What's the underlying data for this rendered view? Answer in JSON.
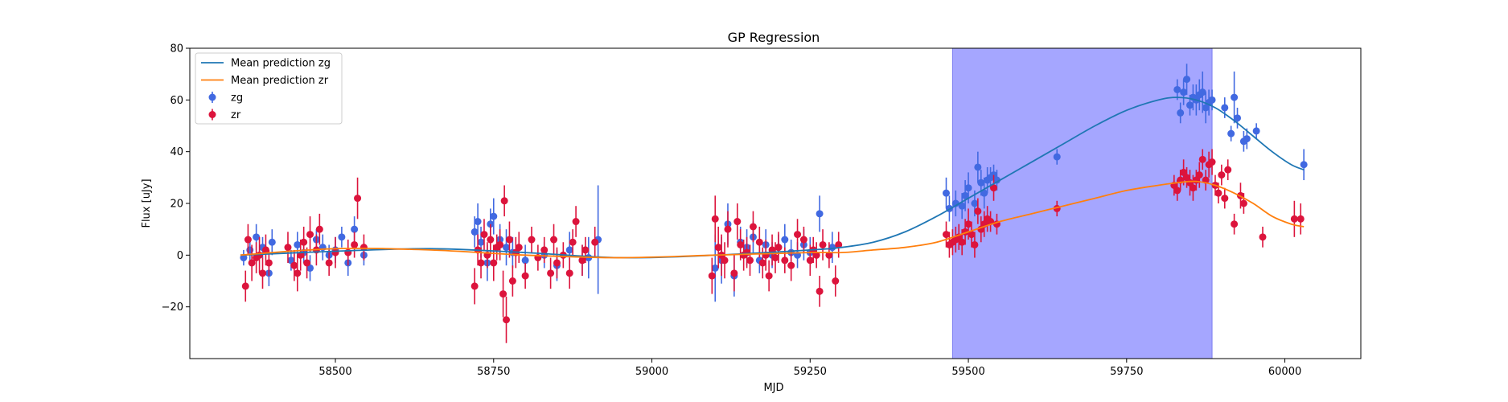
{
  "chart_data": {
    "type": "scatter",
    "title": "GP Regression",
    "xlabel": "MJD",
    "ylabel": "Flux [uJy]",
    "xlim": [
      58270,
      60120
    ],
    "ylim": [
      -40,
      80
    ],
    "xticks": [
      58500,
      58750,
      59000,
      59250,
      59500,
      59750,
      60000
    ],
    "yticks": [
      -20,
      0,
      20,
      40,
      60,
      80
    ],
    "highlight_span": [
      59475,
      59885
    ],
    "highlight_color": "#a5a6ff",
    "legend": {
      "location": "upper left",
      "entries": [
        "Mean prediction zg",
        "Mean prediction zr",
        "zg",
        "zr"
      ]
    },
    "mean_prediction_zg": {
      "name": "Mean prediction zg",
      "color": "#1f77b4",
      "x": [
        58350,
        58500,
        58650,
        58800,
        58950,
        59100,
        59250,
        59300,
        59350,
        59400,
        59450,
        59500,
        59550,
        59600,
        59650,
        59700,
        59750,
        59800,
        59830,
        59860,
        59890,
        59920,
        59950,
        59980,
        60010,
        60030
      ],
      "y": [
        0,
        1.5,
        2.5,
        1,
        -1,
        0,
        2,
        3,
        5,
        9,
        15,
        22,
        29,
        36,
        43,
        50,
        56,
        60,
        61,
        60,
        57,
        52,
        46,
        40,
        35,
        33
      ]
    },
    "mean_prediction_zr": {
      "name": "Mean prediction zr",
      "color": "#ff7f0e",
      "x": [
        58350,
        58500,
        58650,
        58800,
        58950,
        59100,
        59250,
        59300,
        59350,
        59400,
        59450,
        59500,
        59550,
        59600,
        59650,
        59700,
        59750,
        59800,
        59830,
        59860,
        59890,
        59920,
        59950,
        59980,
        60010,
        60030
      ],
      "y": [
        0,
        2.5,
        2,
        0,
        -1,
        0,
        1,
        1,
        2,
        3,
        5,
        9,
        13,
        16,
        19,
        22,
        25,
        27,
        28,
        28.5,
        27,
        24,
        20,
        15,
        12,
        11
      ]
    },
    "series": [
      {
        "name": "zg",
        "color": "#4169e1",
        "points": [
          [
            58355,
            -1,
            3
          ],
          [
            58365,
            2,
            4
          ],
          [
            58375,
            7,
            5
          ],
          [
            58385,
            3,
            4
          ],
          [
            58395,
            -7,
            5
          ],
          [
            58400,
            5,
            5
          ],
          [
            58430,
            -2,
            4
          ],
          [
            58440,
            4,
            5
          ],
          [
            58450,
            1,
            4
          ],
          [
            58460,
            -5,
            5
          ],
          [
            58470,
            6,
            4
          ],
          [
            58480,
            3,
            5
          ],
          [
            58490,
            0,
            4
          ],
          [
            58500,
            2,
            5
          ],
          [
            58510,
            7,
            4
          ],
          [
            58520,
            -3,
            5
          ],
          [
            58530,
            10,
            5
          ],
          [
            58545,
            0,
            4
          ],
          [
            58720,
            9,
            6
          ],
          [
            58725,
            13,
            7
          ],
          [
            58730,
            5,
            6
          ],
          [
            58740,
            -3,
            7
          ],
          [
            58745,
            12,
            6
          ],
          [
            58750,
            15,
            7
          ],
          [
            58760,
            6,
            6
          ],
          [
            58770,
            3,
            7
          ],
          [
            58780,
            1,
            6
          ],
          [
            58800,
            -2,
            6
          ],
          [
            58830,
            0,
            5
          ],
          [
            58850,
            -4,
            6
          ],
          [
            58870,
            2,
            7
          ],
          [
            58890,
            -2,
            6
          ],
          [
            58900,
            -1,
            8
          ],
          [
            58915,
            6,
            21
          ],
          [
            59100,
            -5,
            13
          ],
          [
            59110,
            -2,
            9
          ],
          [
            59120,
            12,
            8
          ],
          [
            59130,
            -8,
            8
          ],
          [
            59140,
            5,
            6
          ],
          [
            59150,
            3,
            7
          ],
          [
            59160,
            7,
            6
          ],
          [
            59170,
            -2,
            5
          ],
          [
            59180,
            4,
            6
          ],
          [
            59190,
            0,
            5
          ],
          [
            59200,
            3,
            5
          ],
          [
            59210,
            6,
            6
          ],
          [
            59220,
            1,
            5
          ],
          [
            59230,
            0,
            5
          ],
          [
            59240,
            4,
            6
          ],
          [
            59250,
            1,
            6
          ],
          [
            59265,
            16,
            7
          ],
          [
            59285,
            3,
            6
          ],
          [
            59465,
            24,
            6
          ],
          [
            59470,
            18,
            5
          ],
          [
            59480,
            20,
            5
          ],
          [
            59490,
            19,
            5
          ],
          [
            59495,
            23,
            6
          ],
          [
            59500,
            26,
            6
          ],
          [
            59510,
            20,
            5
          ],
          [
            59515,
            34,
            6
          ],
          [
            59520,
            28,
            5
          ],
          [
            59525,
            24,
            6
          ],
          [
            59530,
            29,
            5
          ],
          [
            59535,
            30,
            4
          ],
          [
            59540,
            31,
            4
          ],
          [
            59545,
            29,
            4
          ],
          [
            59640,
            38,
            3
          ],
          [
            59830,
            64,
            4
          ],
          [
            59835,
            55,
            4
          ],
          [
            59840,
            63,
            5
          ],
          [
            59845,
            68,
            6
          ],
          [
            59850,
            58,
            4
          ],
          [
            59855,
            61,
            5
          ],
          [
            59860,
            60,
            6
          ],
          [
            59865,
            62,
            6
          ],
          [
            59870,
            63,
            8
          ],
          [
            59875,
            57,
            6
          ],
          [
            59880,
            59,
            5
          ],
          [
            59885,
            60,
            4
          ],
          [
            59905,
            57,
            4
          ],
          [
            59915,
            47,
            3
          ],
          [
            59920,
            61,
            10
          ],
          [
            59925,
            53,
            4
          ],
          [
            59935,
            44,
            4
          ],
          [
            59940,
            45,
            4
          ],
          [
            59955,
            48,
            3
          ],
          [
            60030,
            35,
            6
          ]
        ]
      },
      {
        "name": "zr",
        "color": "#dc143c",
        "points": [
          [
            58358,
            -12,
            6
          ],
          [
            58362,
            6,
            6
          ],
          [
            58368,
            -3,
            7
          ],
          [
            58375,
            -1,
            6
          ],
          [
            58380,
            0,
            7
          ],
          [
            58385,
            -7,
            6
          ],
          [
            58390,
            2,
            6
          ],
          [
            58395,
            -3,
            5
          ],
          [
            58425,
            3,
            6
          ],
          [
            58435,
            -4,
            6
          ],
          [
            58440,
            -7,
            7
          ],
          [
            58445,
            0,
            6
          ],
          [
            58450,
            5,
            6
          ],
          [
            58455,
            -3,
            6
          ],
          [
            58460,
            8,
            7
          ],
          [
            58470,
            2,
            6
          ],
          [
            58475,
            10,
            6
          ],
          [
            58490,
            -3,
            5
          ],
          [
            58500,
            1,
            6
          ],
          [
            58520,
            1,
            5
          ],
          [
            58530,
            4,
            5
          ],
          [
            58535,
            22,
            8
          ],
          [
            58545,
            3,
            5
          ],
          [
            58720,
            -12,
            7
          ],
          [
            58725,
            2,
            6
          ],
          [
            58730,
            -3,
            6
          ],
          [
            58735,
            8,
            6
          ],
          [
            58740,
            0,
            5
          ],
          [
            58745,
            6,
            6
          ],
          [
            58750,
            -3,
            7
          ],
          [
            58755,
            3,
            5
          ],
          [
            58760,
            4,
            6
          ],
          [
            58765,
            -15,
            9
          ],
          [
            58767,
            21,
            6
          ],
          [
            58770,
            -25,
            9
          ],
          [
            58775,
            6,
            7
          ],
          [
            58780,
            -10,
            6
          ],
          [
            58785,
            1,
            6
          ],
          [
            58790,
            3,
            6
          ],
          [
            58800,
            -8,
            5
          ],
          [
            58810,
            6,
            5
          ],
          [
            58820,
            -1,
            5
          ],
          [
            58830,
            2,
            5
          ],
          [
            58840,
            -7,
            6
          ],
          [
            58845,
            6,
            6
          ],
          [
            58850,
            -3,
            6
          ],
          [
            58860,
            0,
            5
          ],
          [
            58870,
            -7,
            6
          ],
          [
            58875,
            5,
            5
          ],
          [
            58880,
            13,
            6
          ],
          [
            58890,
            -2,
            6
          ],
          [
            58895,
            2,
            5
          ],
          [
            58910,
            5,
            6
          ],
          [
            59095,
            -8,
            7
          ],
          [
            59100,
            14,
            9
          ],
          [
            59105,
            3,
            8
          ],
          [
            59110,
            0,
            8
          ],
          [
            59115,
            -2,
            7
          ],
          [
            59120,
            10,
            7
          ],
          [
            59130,
            -7,
            7
          ],
          [
            59135,
            13,
            7
          ],
          [
            59140,
            4,
            6
          ],
          [
            59145,
            0,
            6
          ],
          [
            59150,
            1,
            6
          ],
          [
            59155,
            -2,
            6
          ],
          [
            59160,
            11,
            6
          ],
          [
            59170,
            5,
            6
          ],
          [
            59175,
            -3,
            6
          ],
          [
            59180,
            0,
            6
          ],
          [
            59185,
            -8,
            6
          ],
          [
            59190,
            2,
            6
          ],
          [
            59195,
            -1,
            6
          ],
          [
            59200,
            3,
            6
          ],
          [
            59210,
            -2,
            5
          ],
          [
            59220,
            -4,
            6
          ],
          [
            59230,
            8,
            6
          ],
          [
            59240,
            6,
            5
          ],
          [
            59250,
            -2,
            6
          ],
          [
            59255,
            2,
            5
          ],
          [
            59260,
            0,
            5
          ],
          [
            59265,
            -14,
            6
          ],
          [
            59270,
            4,
            6
          ],
          [
            59280,
            0,
            5
          ],
          [
            59290,
            -10,
            6
          ],
          [
            59295,
            4,
            5
          ],
          [
            59465,
            8,
            5
          ],
          [
            59470,
            4,
            5
          ],
          [
            59475,
            5,
            5
          ],
          [
            59480,
            6,
            5
          ],
          [
            59485,
            7,
            5
          ],
          [
            59490,
            5,
            5
          ],
          [
            59495,
            9,
            5
          ],
          [
            59500,
            12,
            6
          ],
          [
            59505,
            8,
            5
          ],
          [
            59510,
            4,
            5
          ],
          [
            59515,
            17,
            5
          ],
          [
            59520,
            10,
            5
          ],
          [
            59525,
            12,
            5
          ],
          [
            59530,
            14,
            5
          ],
          [
            59535,
            13,
            4
          ],
          [
            59540,
            26,
            5
          ],
          [
            59545,
            12,
            4
          ],
          [
            59640,
            18,
            3
          ],
          [
            59825,
            27,
            4
          ],
          [
            59830,
            25,
            4
          ],
          [
            59835,
            29,
            4
          ],
          [
            59840,
            32,
            5
          ],
          [
            59845,
            30,
            4
          ],
          [
            59850,
            28,
            5
          ],
          [
            59855,
            26,
            5
          ],
          [
            59860,
            29,
            4
          ],
          [
            59865,
            31,
            5
          ],
          [
            59870,
            37,
            4
          ],
          [
            59875,
            29,
            4
          ],
          [
            59880,
            35,
            5
          ],
          [
            59885,
            36,
            5
          ],
          [
            59890,
            27,
            4
          ],
          [
            59895,
            24,
            4
          ],
          [
            59900,
            31,
            4
          ],
          [
            59905,
            22,
            4
          ],
          [
            59910,
            33,
            4
          ],
          [
            59920,
            12,
            4
          ],
          [
            59930,
            23,
            5
          ],
          [
            59935,
            20,
            4
          ],
          [
            59965,
            7,
            4
          ],
          [
            60015,
            14,
            7
          ],
          [
            60025,
            14,
            6
          ]
        ]
      }
    ]
  }
}
